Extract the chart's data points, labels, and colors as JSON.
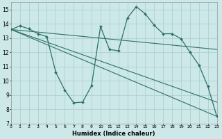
{
  "background_color": "#cce8e8",
  "grid_color": "#aacccc",
  "line_color": "#2d7068",
  "xlabel": "Humidex (Indice chaleur)",
  "xlim": [
    0,
    23
  ],
  "ylim": [
    7,
    15.5
  ],
  "yticks": [
    7,
    8,
    9,
    10,
    11,
    12,
    13,
    14,
    15
  ],
  "xticks": [
    0,
    1,
    2,
    3,
    4,
    5,
    6,
    7,
    8,
    9,
    10,
    11,
    12,
    13,
    14,
    15,
    16,
    17,
    18,
    19,
    20,
    21,
    22,
    23
  ],
  "main_series": {
    "x": [
      0,
      1,
      2,
      3,
      4,
      5,
      6,
      7,
      8,
      9,
      10,
      11,
      12,
      13,
      14,
      15,
      16,
      17,
      18,
      19,
      20,
      21,
      22,
      23
    ],
    "y": [
      13.6,
      13.85,
      13.65,
      13.3,
      13.1,
      10.6,
      9.35,
      8.45,
      8.5,
      9.65,
      13.8,
      12.2,
      12.1,
      14.4,
      15.2,
      14.7,
      13.9,
      13.3,
      13.3,
      12.95,
      12.0,
      11.1,
      9.6,
      7.5
    ]
  },
  "straight_lines": [
    {
      "x0": 0,
      "y0": 13.6,
      "x1": 23,
      "y1": 7.5
    },
    {
      "x0": 0,
      "y0": 13.6,
      "x1": 23,
      "y1": 8.5
    },
    {
      "x0": 0,
      "y0": 13.6,
      "x1": 23,
      "y1": 12.2
    }
  ]
}
